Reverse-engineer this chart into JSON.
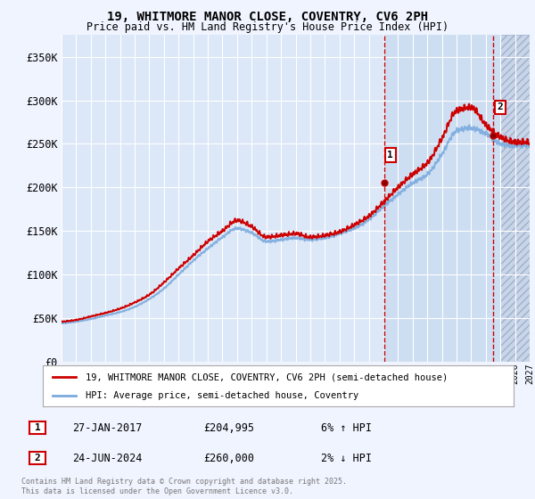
{
  "title1": "19, WHITMORE MANOR CLOSE, COVENTRY, CV6 2PH",
  "title2": "Price paid vs. HM Land Registry's House Price Index (HPI)",
  "ylim": [
    0,
    375000
  ],
  "yticks": [
    0,
    50000,
    100000,
    150000,
    200000,
    250000,
    300000,
    350000
  ],
  "ytick_labels": [
    "£0",
    "£50K",
    "£100K",
    "£150K",
    "£200K",
    "£250K",
    "£300K",
    "£350K"
  ],
  "background_color": "#f0f4ff",
  "plot_bg_color": "#dce8f8",
  "highlight_bg_color": "#c8daf0",
  "hatch_bg_color": "#c8d4e8",
  "grid_color": "#ffffff",
  "red_line_color": "#cc0000",
  "blue_line_color": "#7aaadd",
  "vline_color": "#cc0000",
  "marker1_x": 2017.08,
  "marker1_y": 204995,
  "marker2_x": 2024.49,
  "marker2_y": 260000,
  "legend_line1": "19, WHITMORE MANOR CLOSE, COVENTRY, CV6 2PH (semi-detached house)",
  "legend_line2": "HPI: Average price, semi-detached house, Coventry",
  "table_row1": [
    "1",
    "27-JAN-2017",
    "£204,995",
    "6% ↑ HPI"
  ],
  "table_row2": [
    "2",
    "24-JUN-2024",
    "£260,000",
    "2% ↓ HPI"
  ],
  "footer": "Contains HM Land Registry data © Crown copyright and database right 2025.\nThis data is licensed under the Open Government Licence v3.0.",
  "xmin": 1995,
  "xmax": 2027,
  "highlight_start": 2017.08,
  "hatch_start": 2025
}
